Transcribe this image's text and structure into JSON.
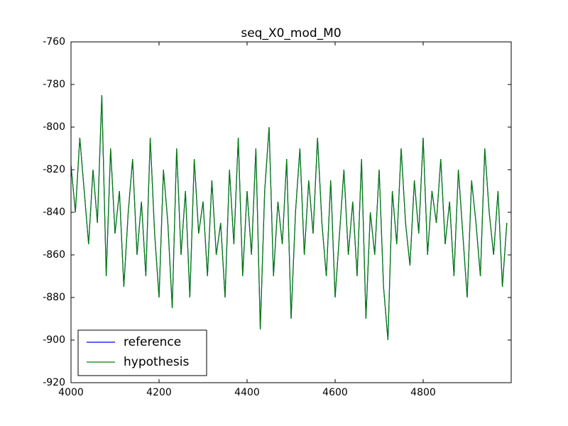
{
  "chart_data": {
    "type": "line",
    "title": "seq_X0_mod_M0",
    "x": [
      4000,
      4010,
      4020,
      4030,
      4040,
      4050,
      4060,
      4070,
      4080,
      4090,
      4100,
      4110,
      4120,
      4130,
      4140,
      4150,
      4160,
      4170,
      4180,
      4190,
      4200,
      4210,
      4220,
      4230,
      4240,
      4250,
      4260,
      4270,
      4280,
      4290,
      4300,
      4310,
      4320,
      4330,
      4340,
      4350,
      4360,
      4370,
      4380,
      4390,
      4400,
      4410,
      4420,
      4430,
      4440,
      4450,
      4460,
      4470,
      4480,
      4490,
      4500,
      4510,
      4520,
      4530,
      4540,
      4550,
      4560,
      4570,
      4580,
      4590,
      4600,
      4610,
      4620,
      4630,
      4640,
      4650,
      4660,
      4670,
      4680,
      4690,
      4700,
      4710,
      4720,
      4730,
      4740,
      4750,
      4760,
      4770,
      4780,
      4790,
      4800,
      4810,
      4820,
      4830,
      4840,
      4850,
      4860,
      4870,
      4880,
      4890,
      4900,
      4910,
      4920,
      4930,
      4940,
      4950,
      4960,
      4970,
      4980,
      4990
    ],
    "series": [
      {
        "name": "reference",
        "color": "#0000ff",
        "values": [
          -818,
          -840,
          -805,
          -830,
          -855,
          -820,
          -845,
          -785,
          -870,
          -810,
          -850,
          -830,
          -875,
          -840,
          -815,
          -860,
          -835,
          -870,
          -805,
          -850,
          -880,
          -820,
          -845,
          -885,
          -810,
          -860,
          -830,
          -880,
          -815,
          -850,
          -835,
          -870,
          -825,
          -860,
          -845,
          -880,
          -820,
          -855,
          -805,
          -870,
          -830,
          -860,
          -810,
          -895,
          -830,
          -800,
          -870,
          -835,
          -855,
          -815,
          -890,
          -840,
          -810,
          -860,
          -825,
          -850,
          -805,
          -845,
          -870,
          -825,
          -880,
          -850,
          -820,
          -860,
          -835,
          -870,
          -815,
          -890,
          -840,
          -860,
          -820,
          -875,
          -900,
          -830,
          -855,
          -810,
          -845,
          -865,
          -825,
          -850,
          -805,
          -860,
          -830,
          -845,
          -815,
          -855,
          -835,
          -870,
          -820,
          -850,
          -880,
          -825,
          -845,
          -870,
          -810,
          -840,
          -860,
          -830,
          -875,
          -845
        ]
      },
      {
        "name": "hypothesis",
        "color": "#008000",
        "values": [
          -818,
          -840,
          -805,
          -830,
          -855,
          -820,
          -845,
          -785,
          -870,
          -810,
          -850,
          -830,
          -875,
          -840,
          -815,
          -860,
          -835,
          -870,
          -805,
          -850,
          -880,
          -820,
          -845,
          -885,
          -810,
          -860,
          -830,
          -880,
          -815,
          -850,
          -835,
          -870,
          -825,
          -860,
          -845,
          -880,
          -820,
          -855,
          -805,
          -870,
          -830,
          -860,
          -810,
          -895,
          -830,
          -800,
          -870,
          -835,
          -855,
          -815,
          -890,
          -840,
          -810,
          -860,
          -825,
          -850,
          -805,
          -845,
          -870,
          -825,
          -880,
          -850,
          -820,
          -860,
          -835,
          -870,
          -815,
          -890,
          -840,
          -860,
          -820,
          -875,
          -900,
          -830,
          -855,
          -810,
          -845,
          -865,
          -825,
          -850,
          -805,
          -860,
          -830,
          -845,
          -815,
          -855,
          -835,
          -870,
          -820,
          -850,
          -880,
          -825,
          -845,
          -870,
          -810,
          -840,
          -860,
          -830,
          -875,
          -845
        ]
      }
    ],
    "xlim": [
      4000,
      5000
    ],
    "xticks": [
      4000,
      4200,
      4400,
      4600,
      4800
    ],
    "ylim": [
      -920,
      -760
    ],
    "yticks": [
      -920,
      -900,
      -880,
      -860,
      -840,
      -820,
      -800,
      -780,
      -760
    ],
    "legend": "lower left"
  }
}
